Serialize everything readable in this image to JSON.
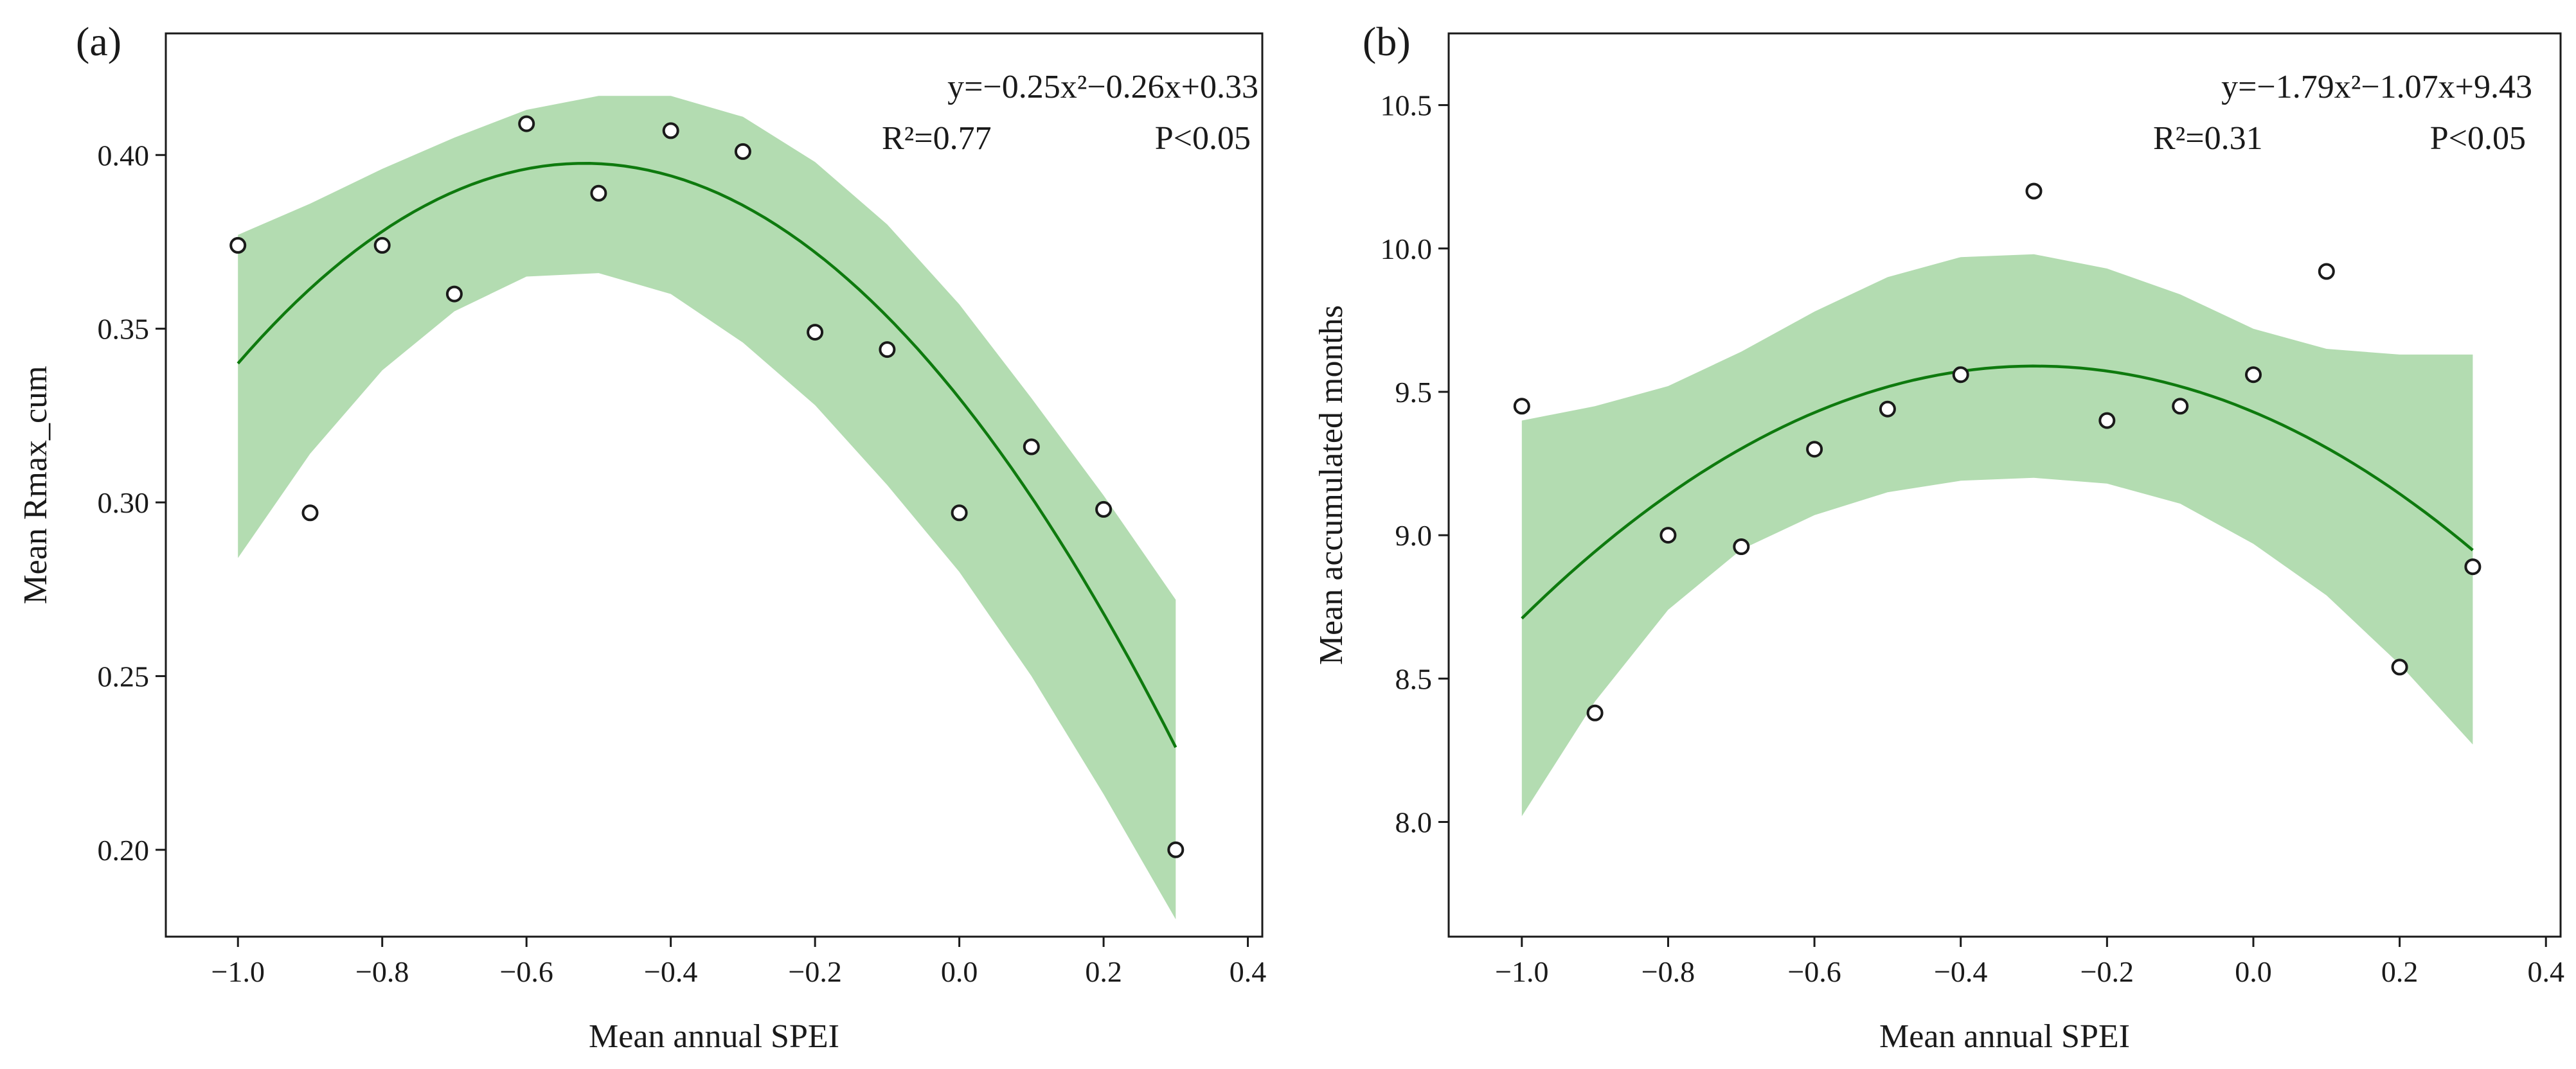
{
  "chart_data": [
    {
      "type": "scatter",
      "panel_label": "(a)",
      "xlabel": "Mean annual SPEI",
      "ylabel": "Mean Rmax_cum",
      "xlim": [
        -1.1,
        0.42
      ],
      "ylim": [
        0.175,
        0.435
      ],
      "x_ticks": [
        -1.0,
        -0.8,
        -0.6,
        -0.4,
        -0.2,
        0.0,
        0.2,
        0.4
      ],
      "x_tick_labels": [
        "−1.0",
        "−0.8",
        "−0.6",
        "−0.4",
        "−0.2",
        "0.0",
        "0.2",
        "0.4"
      ],
      "y_ticks": [
        0.2,
        0.25,
        0.3,
        0.35,
        0.4
      ],
      "y_tick_labels": [
        "0.20",
        "0.25",
        "0.30",
        "0.35",
        "0.40"
      ],
      "points": {
        "x": [
          -1.0,
          -0.9,
          -0.8,
          -0.7,
          -0.6,
          -0.5,
          -0.4,
          -0.3,
          -0.2,
          -0.1,
          0.0,
          0.1,
          0.2,
          0.3
        ],
        "y": [
          0.374,
          0.297,
          0.374,
          0.36,
          0.409,
          0.389,
          0.407,
          0.401,
          0.349,
          0.344,
          0.297,
          0.316,
          0.298,
          0.2
        ]
      },
      "fit": {
        "a": -0.25,
        "b": -0.26,
        "c": 0.33,
        "equation": "y=−0.25x²−0.26x+0.33",
        "r2": "R²=0.77",
        "p": "P<0.05"
      },
      "confidence_band": {
        "x": [
          -1.0,
          -0.9,
          -0.8,
          -0.7,
          -0.6,
          -0.5,
          -0.4,
          -0.3,
          -0.2,
          -0.1,
          0.0,
          0.1,
          0.2,
          0.3
        ],
        "upper": [
          0.377,
          0.386,
          0.396,
          0.405,
          0.413,
          0.417,
          0.417,
          0.411,
          0.398,
          0.38,
          0.357,
          0.33,
          0.302,
          0.272
        ],
        "lower": [
          0.284,
          0.314,
          0.338,
          0.355,
          0.365,
          0.366,
          0.36,
          0.346,
          0.328,
          0.305,
          0.28,
          0.25,
          0.216,
          0.18
        ]
      },
      "colors": {
        "fit_line": "#0e7a0e",
        "band": "#b3dcb1",
        "marker_edge": "#1a1a1a"
      }
    },
    {
      "type": "scatter",
      "panel_label": "(b)",
      "xlabel": "Mean annual SPEI",
      "ylabel": "Mean accumulated months",
      "xlim": [
        -1.1,
        0.42
      ],
      "ylim": [
        7.6,
        10.75
      ],
      "x_ticks": [
        -1.0,
        -0.8,
        -0.6,
        -0.4,
        -0.2,
        0.0,
        0.2,
        0.4
      ],
      "x_tick_labels": [
        "−1.0",
        "−0.8",
        "−0.6",
        "−0.4",
        "−0.2",
        "0.0",
        "0.2",
        "0.4"
      ],
      "y_ticks": [
        8.0,
        8.5,
        9.0,
        9.5,
        10.0,
        10.5
      ],
      "y_tick_labels": [
        "8.0",
        "8.5",
        "9.0",
        "9.5",
        "10.0",
        "10.5"
      ],
      "points": {
        "x": [
          -1.0,
          -0.9,
          -0.8,
          -0.7,
          -0.6,
          -0.5,
          -0.4,
          -0.2,
          -0.1,
          0.0,
          0.1,
          0.2,
          0.3,
          -0.3
        ],
        "y": [
          9.45,
          8.38,
          9.0,
          8.96,
          9.3,
          9.44,
          9.56,
          9.4,
          9.45,
          9.56,
          9.92,
          8.54,
          8.89,
          10.2
        ]
      },
      "fit": {
        "a": -1.79,
        "b": -1.07,
        "c": 9.43,
        "equation": "y=−1.79x²−1.07x+9.43",
        "r2": "R²=0.31",
        "p": "P<0.05"
      },
      "confidence_band": {
        "x": [
          -1.0,
          -0.9,
          -0.8,
          -0.7,
          -0.6,
          -0.5,
          -0.4,
          -0.3,
          -0.2,
          -0.1,
          0.0,
          0.1,
          0.2,
          0.3
        ],
        "upper": [
          9.4,
          9.45,
          9.52,
          9.64,
          9.78,
          9.9,
          9.97,
          9.98,
          9.93,
          9.84,
          9.72,
          9.65,
          9.63,
          9.63
        ],
        "lower": [
          8.02,
          8.42,
          8.74,
          8.95,
          9.07,
          9.15,
          9.19,
          9.2,
          9.18,
          9.11,
          8.97,
          8.79,
          8.55,
          8.27
        ]
      },
      "colors": {
        "fit_line": "#0e7a0e",
        "band": "#b3dcb1",
        "marker_edge": "#1a1a1a"
      }
    }
  ]
}
